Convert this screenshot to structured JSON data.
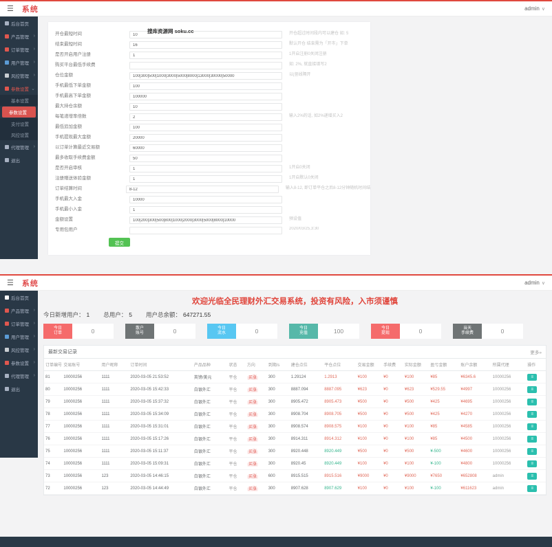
{
  "shot1": {
    "header": {
      "logo": "系统",
      "user": "admin"
    },
    "sidebar": {
      "items": [
        {
          "name": "sidebar-item-dashboard",
          "label": "后台首页",
          "icon": "home-icon",
          "color": "#a7b1c2"
        },
        {
          "name": "sidebar-item-products",
          "label": "产品管理",
          "icon": "product-icon",
          "color": "#e0574f",
          "arrow": "›"
        },
        {
          "name": "sidebar-item-orders",
          "label": "订单管理",
          "icon": "order-icon",
          "color": "#e0574f",
          "arrow": "›"
        },
        {
          "name": "sidebar-item-users",
          "label": "用户管理",
          "icon": "users-icon",
          "color": "#5b9bd5",
          "arrow": "›"
        },
        {
          "name": "sidebar-item-risk",
          "label": "风控管理",
          "icon": "risk-icon",
          "color": "#c8cdd2",
          "arrow": "›"
        },
        {
          "name": "sidebar-item-settings",
          "label": "参数设置",
          "icon": "settings-icon",
          "color": "#e0574f",
          "arrow": "⌄",
          "cls": "group-open"
        },
        {
          "name": "sidebar-subitem-basic-settings",
          "label": "基本设置",
          "cls": "sub"
        },
        {
          "name": "sidebar-subitem-param-settings",
          "label": "参数设置",
          "cls": "sub active"
        },
        {
          "name": "sidebar-subitem-pay-settings",
          "label": "支付设置",
          "cls": "sub"
        },
        {
          "name": "sidebar-subitem-risk-settings",
          "label": "风控设置",
          "cls": "sub"
        },
        {
          "name": "sidebar-item-agents",
          "label": "代理管理",
          "icon": "agents-icon",
          "color": "#a7b1c2",
          "arrow": "›"
        },
        {
          "name": "sidebar-item-logout",
          "label": "退出",
          "icon": "logout-icon",
          "color": "#a7b1c2"
        }
      ]
    },
    "form": {
      "submit_label": "提交",
      "rows": [
        {
          "label": "开仓最短时间",
          "value": "10",
          "watermark": "搜库资源网 soku.cc",
          "hint": "开仓超过时间段内可以建仓 如: 5"
        },
        {
          "label": "结束最短时间",
          "value": "16",
          "hint": "默认开仓 结束需为「开市」下单"
        },
        {
          "label": "是否开启用户注册",
          "value": "1",
          "hint": "1开启注册0关闭注册"
        },
        {
          "label": "购买平台最低手续费",
          "value": "",
          "hint": "如: 2%, 就直接填写2"
        },
        {
          "label": "仓位金额",
          "value": "100|300|500|1000|3000|5000|8000|13000|30000|50000",
          "hint": "以|竖线隔开"
        },
        {
          "label": "手机最低下单金额",
          "value": "100",
          "hint": ""
        },
        {
          "label": "手机最高下单金额",
          "value": "100000",
          "hint": ""
        },
        {
          "label": "最大持仓余额",
          "value": "10",
          "hint": ""
        },
        {
          "label": "每笔递增率倍数",
          "value": "2",
          "hint": "输入2%的话, 如2%递增买入2"
        },
        {
          "label": "最低追加金额",
          "value": "100",
          "hint": ""
        },
        {
          "label": "手机提现最大金额",
          "value": "20000",
          "hint": ""
        },
        {
          "label": "以订单计算最近交易额",
          "value": "60000",
          "hint": ""
        },
        {
          "label": "最多收取手续费金额",
          "value": "50",
          "hint": ""
        },
        {
          "label": "是否开启审核",
          "value": "1",
          "hint": "1开启0关闭"
        },
        {
          "label": "注册赠送体验金额",
          "value": "1",
          "hint": "1开启默认0关闭"
        },
        {
          "label": "订单结算时间",
          "value": "8-12",
          "hint": "输入8-12, 即订单平仓之后8-12分钟随机时间结算"
        },
        {
          "label": "手机最大入金",
          "value": "10000",
          "hint": ""
        },
        {
          "label": "手机最小入金",
          "value": "1",
          "hint": ""
        },
        {
          "label": "金额设置",
          "value": "100|200|300|500|800|1000|2000|3000|5000|8000|10000",
          "hint": "预设值"
        },
        {
          "label": "专用包用户",
          "value": "",
          "hint": "2020/03/25,3:30"
        }
      ]
    }
  },
  "shot2": {
    "header": {
      "logo": "系统",
      "user": "admin"
    },
    "sidebar": {
      "items": [
        {
          "name": "sidebar-item-dashboard",
          "label": "后台首页",
          "icon": "home-icon",
          "color": "#ffffff"
        },
        {
          "name": "sidebar-item-products",
          "label": "产品管理",
          "icon": "product-icon",
          "color": "#e0574f",
          "arrow": "›"
        },
        {
          "name": "sidebar-item-orders",
          "label": "订单管理",
          "icon": "order-icon",
          "color": "#e0574f",
          "arrow": "›"
        },
        {
          "name": "sidebar-item-users",
          "label": "用户管理",
          "icon": "users-icon",
          "color": "#5b9bd5",
          "arrow": "›"
        },
        {
          "name": "sidebar-item-risk",
          "label": "风控管理",
          "icon": "risk-icon",
          "color": "#c8cdd2",
          "arrow": "›"
        },
        {
          "name": "sidebar-item-settings",
          "label": "参数设置",
          "icon": "settings-icon",
          "color": "#e0574f",
          "arrow": "›"
        },
        {
          "name": "sidebar-item-agents",
          "label": "代理管理",
          "icon": "agents-icon",
          "color": "#a7b1c2",
          "arrow": "›"
        },
        {
          "name": "sidebar-item-logout",
          "label": "退出",
          "icon": "logout-icon",
          "color": "#a7b1c2"
        }
      ]
    },
    "welcome": "欢迎光临全民理财外汇交易系统，投资有风险，入市须谨慎",
    "stats": [
      {
        "label": "今日新增用户：",
        "value": "1"
      },
      {
        "label": "总用户：",
        "value": "5"
      },
      {
        "label": "用户总余额：",
        "value": "647271.55"
      }
    ],
    "stat_boxes": [
      {
        "l1": "今日",
        "l2": "订单",
        "color": "#f56b6b",
        "value": "0"
      },
      {
        "l1": "散户",
        "l2": "账号",
        "color": "#6f7475",
        "value": "0"
      },
      {
        "l1": "今日",
        "l2": "流水",
        "color": "#58c7f2",
        "value": "0"
      },
      {
        "l1": "今日",
        "l2": "充值",
        "color": "#56b8a9",
        "value": "100"
      },
      {
        "l1": "今日",
        "l2": "提现",
        "color": "#f56b6b",
        "value": "0"
      },
      {
        "l1": "当天",
        "l2": "手续费",
        "color": "#6f7475",
        "value": "0"
      }
    ],
    "table": {
      "title": "最新交易记录",
      "more_label": "更多»",
      "columns": [
        {
          "key": "id",
          "label": "订单编号"
        },
        {
          "key": "account",
          "label": "交易账号"
        },
        {
          "key": "nick",
          "label": "用户昵称"
        },
        {
          "key": "time",
          "label": "订单时间"
        },
        {
          "key": "product",
          "label": "产品品种"
        },
        {
          "key": "status",
          "label": "状态"
        },
        {
          "key": "direction",
          "label": "方向"
        },
        {
          "key": "period",
          "label": "到期/s"
        },
        {
          "key": "open",
          "label": "建仓点位"
        },
        {
          "key": "close",
          "label": "平仓点位"
        },
        {
          "key": "amount",
          "label": "交易金额"
        },
        {
          "key": "fee",
          "label": "手续费"
        },
        {
          "key": "actual",
          "label": "实际金额"
        },
        {
          "key": "profit",
          "label": "盈亏金额"
        },
        {
          "key": "balance",
          "label": "账户余额"
        },
        {
          "key": "agent",
          "label": "所属代理"
        },
        {
          "key": "op",
          "label": "操作"
        }
      ],
      "rows": [
        {
          "id": "81",
          "account": "10000256",
          "nick": "1111",
          "time": "2020-03-05 21:53:52",
          "product": "英镑/美元",
          "status": "平仓",
          "direction": "买涨",
          "period": "300",
          "open": "1.29124",
          "close": "1.2913",
          "close_cls": "red",
          "amount": "¥100",
          "fee": "¥0",
          "actual": "¥100",
          "profit": "¥85",
          "profit_cls": "red",
          "balance": "¥6345.6",
          "agent": "10000256"
        },
        {
          "id": "80",
          "account": "10000256",
          "nick": "1111",
          "time": "2020-03-05 15:42:33",
          "product": "白银外汇",
          "status": "平仓",
          "direction": "买涨",
          "period": "300",
          "open": "8887.094",
          "close": "8887.095",
          "close_cls": "red",
          "amount": "¥623",
          "fee": "¥0",
          "actual": "¥623",
          "profit": "¥529.55",
          "profit_cls": "red",
          "balance": "¥4997",
          "agent": "10000256"
        },
        {
          "id": "79",
          "account": "10000256",
          "nick": "1111",
          "time": "2020-03-05 15:37:32",
          "product": "白银外汇",
          "status": "平仓",
          "direction": "买涨",
          "period": "300",
          "open": "8905.472",
          "close": "8905.473",
          "close_cls": "red",
          "amount": "¥500",
          "fee": "¥0",
          "actual": "¥500",
          "profit": "¥425",
          "profit_cls": "red",
          "balance": "¥4695",
          "agent": "10000256"
        },
        {
          "id": "78",
          "account": "10000256",
          "nick": "1111",
          "time": "2020-03-05 15:34:09",
          "product": "白银外汇",
          "status": "平仓",
          "direction": "买涨",
          "period": "300",
          "open": "8908.704",
          "close": "8908.705",
          "close_cls": "red",
          "amount": "¥500",
          "fee": "¥0",
          "actual": "¥500",
          "profit": "¥425",
          "profit_cls": "red",
          "balance": "¥4270",
          "agent": "10000256"
        },
        {
          "id": "77",
          "account": "10000256",
          "nick": "1111",
          "time": "2020-03-05 15:31:01",
          "product": "白银外汇",
          "status": "平仓",
          "direction": "买涨",
          "period": "300",
          "open": "8908.574",
          "close": "8908.575",
          "close_cls": "red",
          "amount": "¥100",
          "fee": "¥0",
          "actual": "¥100",
          "profit": "¥85",
          "profit_cls": "red",
          "balance": "¥4585",
          "agent": "10000256"
        },
        {
          "id": "76",
          "account": "10000256",
          "nick": "1111",
          "time": "2020-03-05 15:17:26",
          "product": "白银外汇",
          "status": "平仓",
          "direction": "买涨",
          "period": "300",
          "open": "8914.311",
          "close": "8914.312",
          "close_cls": "red",
          "amount": "¥100",
          "fee": "¥0",
          "actual": "¥100",
          "profit": "¥85",
          "profit_cls": "red",
          "balance": "¥4500",
          "agent": "10000256"
        },
        {
          "id": "75",
          "account": "10000256",
          "nick": "1111",
          "time": "2020-03-05 15:11:37",
          "product": "白银外汇",
          "status": "平仓",
          "direction": "买涨",
          "period": "300",
          "open": "8920.448",
          "close": "8920.449",
          "close_cls": "green",
          "amount": "¥500",
          "fee": "¥0",
          "actual": "¥500",
          "profit": "¥-500",
          "profit_cls": "green",
          "balance": "¥4600",
          "agent": "10000256"
        },
        {
          "id": "74",
          "account": "10000256",
          "nick": "1111",
          "time": "2020-03-05 15:09:31",
          "product": "白银外汇",
          "status": "平仓",
          "direction": "买涨",
          "period": "300",
          "open": "8920.45",
          "close": "8920.449",
          "close_cls": "green",
          "amount": "¥100",
          "fee": "¥0",
          "actual": "¥100",
          "profit": "¥-100",
          "profit_cls": "green",
          "balance": "¥4800",
          "agent": "10000256"
        },
        {
          "id": "73",
          "account": "10000256",
          "nick": "123",
          "time": "2020-03-05 14:46:15",
          "product": "白银外汇",
          "status": "平仓",
          "direction": "买涨",
          "period": "600",
          "open": "8915.515",
          "close": "8915.516",
          "close_cls": "red",
          "amount": "¥9000",
          "fee": "¥0",
          "actual": "¥9000",
          "profit": "¥7650",
          "profit_cls": "red",
          "balance": "¥652808",
          "agent": "admin"
        },
        {
          "id": "72",
          "account": "10000256",
          "nick": "123",
          "time": "2020-03-05 14:44:49",
          "product": "白银外汇",
          "status": "平仓",
          "direction": "买涨",
          "period": "300",
          "open": "8907.628",
          "close": "8907.629",
          "close_cls": "green",
          "amount": "¥100",
          "fee": "¥0",
          "actual": "¥100",
          "profit": "¥-100",
          "profit_cls": "green",
          "balance": "¥611623",
          "agent": "admin"
        }
      ]
    }
  }
}
